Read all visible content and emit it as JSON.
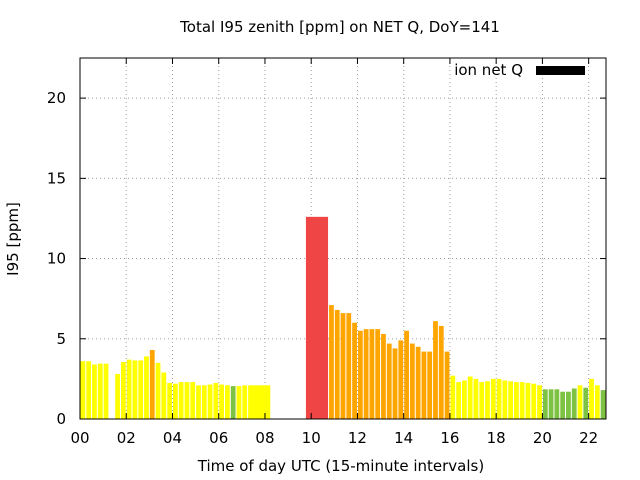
{
  "chart_data": {
    "type": "bar",
    "title": "Total I95 zenith [ppm] on NET Q, DoY=141",
    "xlabel": "Time of day UTC (15-minute intervals)",
    "ylabel": "I95 [ppm]",
    "xlim": [
      0,
      22.75
    ],
    "ylim": [
      0,
      22.5
    ],
    "x_ticks": [
      "00",
      "02",
      "04",
      "06",
      "08",
      "10",
      "12",
      "14",
      "16",
      "18",
      "20",
      "22"
    ],
    "y_ticks": [
      "0",
      "5",
      "10",
      "15",
      "20"
    ],
    "grid": true,
    "legend": {
      "label": "ion net Q",
      "position": "top-right",
      "color": "#000000"
    },
    "colors": {
      "yellow": "#ffff00",
      "green": "#7dc242",
      "orange": "#ffa500",
      "red": "#f04545"
    },
    "series": [
      {
        "name": "ion net Q",
        "bars": [
          {
            "x": 0.0,
            "w": 0.25,
            "y": 3.6,
            "c": "yellow"
          },
          {
            "x": 0.25,
            "w": 0.25,
            "y": 3.6,
            "c": "yellow"
          },
          {
            "x": 0.5,
            "w": 0.25,
            "y": 3.4,
            "c": "yellow"
          },
          {
            "x": 0.75,
            "w": 0.25,
            "y": 3.45,
            "c": "yellow"
          },
          {
            "x": 1.0,
            "w": 0.25,
            "y": 3.45,
            "c": "yellow"
          },
          {
            "x": 1.5,
            "w": 0.25,
            "y": 2.8,
            "c": "yellow"
          },
          {
            "x": 1.75,
            "w": 0.25,
            "y": 3.55,
            "c": "yellow"
          },
          {
            "x": 2.0,
            "w": 0.25,
            "y": 3.7,
            "c": "yellow"
          },
          {
            "x": 2.25,
            "w": 0.25,
            "y": 3.65,
            "c": "yellow"
          },
          {
            "x": 2.5,
            "w": 0.25,
            "y": 3.65,
            "c": "yellow"
          },
          {
            "x": 2.75,
            "w": 0.25,
            "y": 3.9,
            "c": "yellow"
          },
          {
            "x": 3.0,
            "w": 0.25,
            "y": 4.3,
            "c": "orange"
          },
          {
            "x": 3.25,
            "w": 0.25,
            "y": 3.5,
            "c": "yellow"
          },
          {
            "x": 3.5,
            "w": 0.25,
            "y": 2.9,
            "c": "yellow"
          },
          {
            "x": 3.75,
            "w": 0.25,
            "y": 2.25,
            "c": "yellow"
          },
          {
            "x": 4.0,
            "w": 0.25,
            "y": 2.2,
            "c": "yellow"
          },
          {
            "x": 4.25,
            "w": 0.25,
            "y": 2.3,
            "c": "yellow"
          },
          {
            "x": 4.5,
            "w": 0.25,
            "y": 2.3,
            "c": "yellow"
          },
          {
            "x": 4.75,
            "w": 0.25,
            "y": 2.3,
            "c": "yellow"
          },
          {
            "x": 5.0,
            "w": 0.25,
            "y": 2.1,
            "c": "yellow"
          },
          {
            "x": 5.25,
            "w": 0.25,
            "y": 2.1,
            "c": "yellow"
          },
          {
            "x": 5.5,
            "w": 0.25,
            "y": 2.15,
            "c": "yellow"
          },
          {
            "x": 5.75,
            "w": 0.25,
            "y": 2.25,
            "c": "yellow"
          },
          {
            "x": 6.0,
            "w": 0.25,
            "y": 2.15,
            "c": "yellow"
          },
          {
            "x": 6.25,
            "w": 0.25,
            "y": 2.1,
            "c": "yellow"
          },
          {
            "x": 6.5,
            "w": 0.25,
            "y": 2.05,
            "c": "green"
          },
          {
            "x": 6.75,
            "w": 0.25,
            "y": 2.05,
            "c": "yellow"
          },
          {
            "x": 7.0,
            "w": 0.25,
            "y": 2.1,
            "c": "yellow"
          },
          {
            "x": 7.25,
            "w": 1.0,
            "y": 2.1,
            "c": "yellow"
          },
          {
            "x": 9.75,
            "w": 1.0,
            "y": 12.6,
            "c": "red"
          },
          {
            "x": 10.75,
            "w": 0.25,
            "y": 7.1,
            "c": "orange"
          },
          {
            "x": 11.0,
            "w": 0.25,
            "y": 6.8,
            "c": "orange"
          },
          {
            "x": 11.25,
            "w": 0.25,
            "y": 6.6,
            "c": "orange"
          },
          {
            "x": 11.5,
            "w": 0.25,
            "y": 6.6,
            "c": "orange"
          },
          {
            "x": 11.75,
            "w": 0.25,
            "y": 6.0,
            "c": "orange"
          },
          {
            "x": 12.0,
            "w": 0.25,
            "y": 5.5,
            "c": "orange"
          },
          {
            "x": 12.25,
            "w": 0.25,
            "y": 5.6,
            "c": "orange"
          },
          {
            "x": 12.5,
            "w": 0.25,
            "y": 5.6,
            "c": "orange"
          },
          {
            "x": 12.75,
            "w": 0.25,
            "y": 5.6,
            "c": "orange"
          },
          {
            "x": 13.0,
            "w": 0.25,
            "y": 5.3,
            "c": "orange"
          },
          {
            "x": 13.25,
            "w": 0.25,
            "y": 4.7,
            "c": "orange"
          },
          {
            "x": 13.5,
            "w": 0.25,
            "y": 4.4,
            "c": "orange"
          },
          {
            "x": 13.75,
            "w": 0.25,
            "y": 4.9,
            "c": "orange"
          },
          {
            "x": 14.0,
            "w": 0.25,
            "y": 5.5,
            "c": "orange"
          },
          {
            "x": 14.25,
            "w": 0.25,
            "y": 4.7,
            "c": "orange"
          },
          {
            "x": 14.5,
            "w": 0.25,
            "y": 4.5,
            "c": "orange"
          },
          {
            "x": 14.75,
            "w": 0.25,
            "y": 4.2,
            "c": "orange"
          },
          {
            "x": 15.0,
            "w": 0.25,
            "y": 4.2,
            "c": "orange"
          },
          {
            "x": 15.25,
            "w": 0.25,
            "y": 6.1,
            "c": "orange"
          },
          {
            "x": 15.5,
            "w": 0.25,
            "y": 5.8,
            "c": "orange"
          },
          {
            "x": 15.75,
            "w": 0.25,
            "y": 4.2,
            "c": "orange"
          },
          {
            "x": 16.0,
            "w": 0.25,
            "y": 2.7,
            "c": "yellow"
          },
          {
            "x": 16.25,
            "w": 0.25,
            "y": 2.3,
            "c": "yellow"
          },
          {
            "x": 16.5,
            "w": 0.25,
            "y": 2.4,
            "c": "yellow"
          },
          {
            "x": 16.75,
            "w": 0.25,
            "y": 2.65,
            "c": "yellow"
          },
          {
            "x": 17.0,
            "w": 0.25,
            "y": 2.5,
            "c": "yellow"
          },
          {
            "x": 17.25,
            "w": 0.25,
            "y": 2.3,
            "c": "yellow"
          },
          {
            "x": 17.5,
            "w": 0.25,
            "y": 2.35,
            "c": "yellow"
          },
          {
            "x": 17.75,
            "w": 0.25,
            "y": 2.5,
            "c": "yellow"
          },
          {
            "x": 18.0,
            "w": 0.25,
            "y": 2.5,
            "c": "yellow"
          },
          {
            "x": 18.25,
            "w": 0.25,
            "y": 2.4,
            "c": "yellow"
          },
          {
            "x": 18.5,
            "w": 0.25,
            "y": 2.35,
            "c": "yellow"
          },
          {
            "x": 18.75,
            "w": 0.25,
            "y": 2.3,
            "c": "yellow"
          },
          {
            "x": 19.0,
            "w": 0.25,
            "y": 2.3,
            "c": "yellow"
          },
          {
            "x": 19.25,
            "w": 0.25,
            "y": 2.25,
            "c": "yellow"
          },
          {
            "x": 19.5,
            "w": 0.25,
            "y": 2.2,
            "c": "yellow"
          },
          {
            "x": 19.75,
            "w": 0.25,
            "y": 2.1,
            "c": "yellow"
          },
          {
            "x": 20.0,
            "w": 0.25,
            "y": 1.85,
            "c": "green"
          },
          {
            "x": 20.25,
            "w": 0.25,
            "y": 1.85,
            "c": "green"
          },
          {
            "x": 20.5,
            "w": 0.25,
            "y": 1.85,
            "c": "green"
          },
          {
            "x": 20.75,
            "w": 0.25,
            "y": 1.7,
            "c": "green"
          },
          {
            "x": 21.0,
            "w": 0.25,
            "y": 1.7,
            "c": "green"
          },
          {
            "x": 21.25,
            "w": 0.25,
            "y": 1.9,
            "c": "green"
          },
          {
            "x": 21.5,
            "w": 0.25,
            "y": 2.1,
            "c": "yellow"
          },
          {
            "x": 21.75,
            "w": 0.25,
            "y": 1.95,
            "c": "green"
          },
          {
            "x": 22.0,
            "w": 0.25,
            "y": 2.5,
            "c": "yellow"
          },
          {
            "x": 22.25,
            "w": 0.25,
            "y": 2.1,
            "c": "yellow"
          },
          {
            "x": 22.5,
            "w": 0.25,
            "y": 1.8,
            "c": "green"
          }
        ]
      }
    ]
  }
}
